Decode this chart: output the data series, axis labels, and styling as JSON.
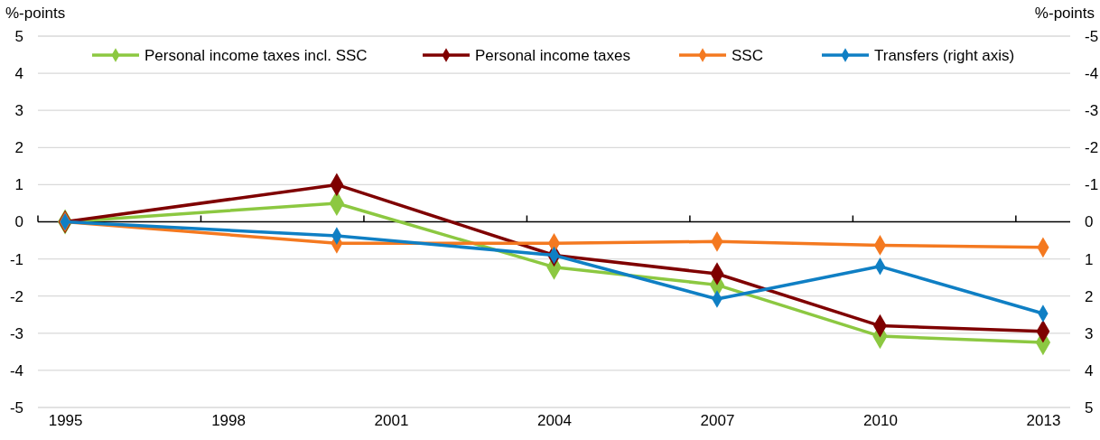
{
  "chart_data": {
    "type": "line",
    "ylabel": "%-points",
    "y2label": "%-points",
    "x": [
      1995,
      2000,
      2004,
      2007,
      2010,
      2013
    ],
    "xlim": [
      1994.5,
      2013.5
    ],
    "xticks": [
      {
        "value": 1994.5,
        "label": null
      },
      1995,
      {
        "value": 1997.5,
        "label": null
      },
      1998,
      {
        "value": 2000.5,
        "label": null
      },
      2001,
      {
        "value": 2003.5,
        "label": null
      },
      2004,
      {
        "value": 2006.5,
        "label": null
      },
      2007,
      {
        "value": 2009.5,
        "label": null
      },
      2010,
      {
        "value": 2012.5,
        "label": null
      },
      2013
    ],
    "ylim": [
      -5,
      5
    ],
    "yticks": [
      -5,
      -4,
      -3,
      -2,
      -1,
      0,
      1,
      2,
      3,
      4,
      5
    ],
    "y2lim": [
      5,
      -5
    ],
    "y2ticks": [
      5,
      4,
      3,
      2,
      1,
      0,
      -1,
      -2,
      -3,
      -4,
      -5
    ],
    "series": [
      {
        "name": "Personal income taxes incl. SSC",
        "color": "#8cc841",
        "values": [
          0,
          0.5,
          -1.22,
          -1.7,
          -3.08,
          -3.25
        ]
      },
      {
        "name": "Personal income taxes",
        "color": "#7f0000",
        "values": [
          0,
          1.0,
          -0.9,
          -1.4,
          -2.8,
          -2.95
        ]
      },
      {
        "name": "SSC",
        "color": "#f47920",
        "values": [
          0,
          -0.58,
          -0.58,
          -0.53,
          -0.63,
          -0.69
        ]
      },
      {
        "name": "Transfers (right axis)",
        "color": "#0f7fc4",
        "axis": "y2",
        "values": [
          0,
          0.38,
          0.9,
          2.08,
          1.2,
          2.47
        ]
      }
    ],
    "grid": "y",
    "legend": "top",
    "marker": "diamond",
    "line_style": "solid"
  }
}
